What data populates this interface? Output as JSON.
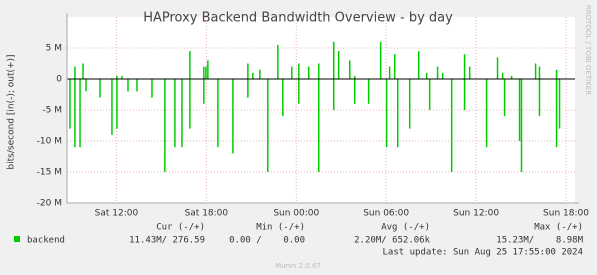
{
  "chart_data": {
    "type": "spikes",
    "title": "HAProxy Backend Bandwidth Overview - by day",
    "y_label": "bits/second [in(-); out(+)]",
    "side_label": "RRDTOOL / TOBI OETIKER",
    "x": [
      8.9,
      9.23,
      9.57,
      9.77,
      9.97,
      10.9,
      11.7,
      12.03,
      12.37,
      12.77,
      13.37,
      14.37,
      15.23,
      15.9,
      16.37,
      16.9,
      17.83,
      17.97,
      18.1,
      18.77,
      19.77,
      20.77,
      21.1,
      21.57,
      22.1,
      22.77,
      23.1,
      23.7,
      24.17,
      24.83,
      25.5,
      26.5,
      26.83,
      27.57,
      27.9,
      28.83,
      29.63,
      30.03,
      30.23,
      30.57,
      30.77,
      31.57,
      32.17,
      32.7,
      32.9,
      33.43,
      33.77,
      34.37,
      35.23,
      35.57,
      36.7,
      37.43,
      37.77,
      37.9,
      38.37,
      38.9,
      39.03,
      39.97,
      40.23,
      41.37,
      41.57
    ],
    "series": [
      {
        "name": "backend",
        "color": "#00cc00",
        "out": [
          0,
          2,
          0,
          2.5,
          0,
          0,
          0,
          0.5,
          0.5,
          0,
          0,
          0,
          0,
          0,
          0,
          4.5,
          2,
          2,
          3,
          0,
          0,
          2.5,
          1,
          1.5,
          0,
          5.5,
          0,
          2,
          2.5,
          2,
          2.5,
          6,
          4.5,
          3,
          0.5,
          0,
          6,
          0,
          2,
          4,
          0,
          0,
          4.5,
          1,
          0,
          2,
          1,
          0,
          4,
          2,
          0,
          3.5,
          1,
          0,
          0.5,
          0,
          0,
          2.5,
          2,
          1.5,
          0
        ],
        "in": [
          -8,
          -11,
          -11,
          0,
          -2,
          -3,
          -9,
          -8,
          0,
          -2,
          -2,
          -3,
          -15,
          -11,
          -11,
          -8,
          -4,
          0,
          0,
          -11,
          -12,
          -3,
          0,
          0,
          -15,
          0,
          -6,
          0,
          -4,
          0,
          -15,
          -5,
          0,
          0,
          -4,
          -4,
          0,
          -11,
          0,
          0,
          -11,
          -8,
          0,
          0,
          -5,
          0,
          0,
          -15,
          -5,
          0,
          -11,
          0,
          0,
          -6,
          0,
          -10,
          -15,
          0,
          -6,
          -11,
          -8
        ]
      }
    ],
    "xlim": [
      8.7,
      42.6
    ],
    "xticks": [
      {
        "value": 12,
        "label": "Sat 12:00"
      },
      {
        "value": 18,
        "label": "Sat 18:00"
      },
      {
        "value": 24,
        "label": "Sun 00:00"
      },
      {
        "value": 30,
        "label": "Sun 06:00"
      },
      {
        "value": 36,
        "label": "Sun 12:00"
      },
      {
        "value": 42,
        "label": "Sun 18:00"
      }
    ],
    "ylim": [
      -20,
      10
    ],
    "yticks": [
      {
        "value": 5,
        "label": "5 M"
      },
      0,
      {
        "value": -5,
        "label": "-5 M"
      },
      {
        "value": -10,
        "label": "-10 M"
      },
      {
        "value": -15,
        "label": "-15 M"
      },
      {
        "value": -20,
        "label": "-20 M"
      }
    ],
    "grid": true,
    "legend": {
      "headers": [
        "Cur (-/+)",
        "Min (-/+)",
        "Avg (-/+)",
        "Max (-/+)"
      ],
      "rows": [
        [
          "11.43M/ 276.59",
          "0.00 /    0.00",
          "2.20M/ 652.06k",
          "15.23M/    8.98M"
        ]
      ]
    },
    "last_update": "Last update: Sun Aug 25 17:55:00 2024",
    "footer": "Munin 2.0.67"
  }
}
